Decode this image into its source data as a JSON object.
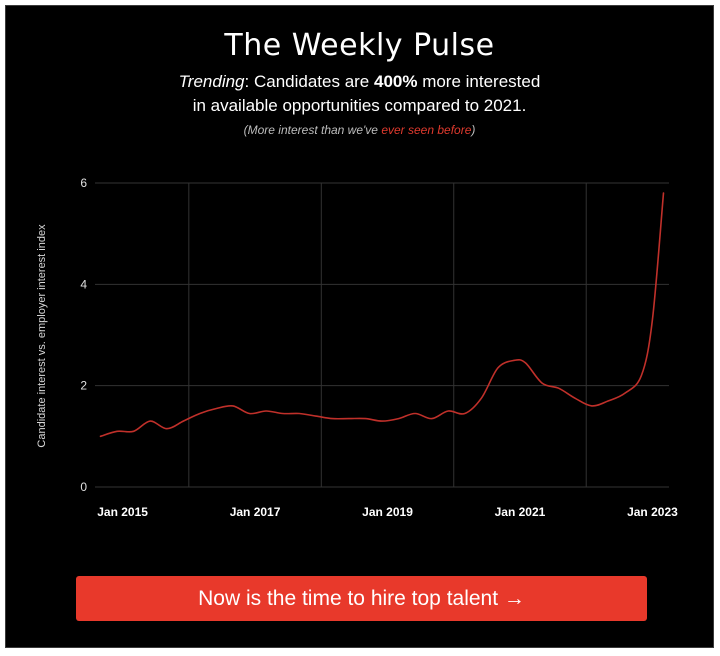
{
  "header": {
    "title": "The Weekly Pulse",
    "trend_prefix": "Trending",
    "trend_mid": ": Candidates are ",
    "trend_highlight": "400%",
    "trend_suffix": " more interested",
    "trend_line2": "in available opportunities compared to 2021.",
    "note_open": "(More interest than we've ",
    "note_highlight": "ever seen before",
    "note_close": ")"
  },
  "cta": {
    "label": "Now is the time to hire top talent →"
  },
  "colors": {
    "line": "#c0302a",
    "highlight": "#e03a2e",
    "cta": "#e8392b",
    "grid": "#333333"
  },
  "chart_data": {
    "type": "line",
    "ylabel": "Candidate interest vs. employer interest index",
    "xlabel": "",
    "ylim": [
      0,
      6
    ],
    "yticks": [
      0,
      2,
      4,
      6
    ],
    "xlim": [
      "2014-08",
      "2023-04"
    ],
    "xtick_labels": [
      "Jan 2015",
      "Jan 2017",
      "Jan 2019",
      "Jan 2021",
      "Jan 2023"
    ],
    "grid": true,
    "series": [
      {
        "x": [
          "2014-09",
          "2014-12",
          "2015-03",
          "2015-06",
          "2015-09",
          "2015-12",
          "2016-03",
          "2016-06",
          "2016-09",
          "2016-12",
          "2017-03",
          "2017-06",
          "2017-09",
          "2017-12",
          "2018-03",
          "2018-06",
          "2018-09",
          "2018-12",
          "2019-03",
          "2019-06",
          "2019-09",
          "2019-12",
          "2020-03",
          "2020-06",
          "2020-09",
          "2020-12",
          "2021-02",
          "2021-05",
          "2021-08",
          "2021-11",
          "2022-02",
          "2022-05",
          "2022-08",
          "2022-11",
          "2023-01",
          "2023-03"
        ],
        "y": [
          1.0,
          1.1,
          1.1,
          1.3,
          1.15,
          1.3,
          1.45,
          1.55,
          1.6,
          1.45,
          1.5,
          1.45,
          1.45,
          1.4,
          1.35,
          1.35,
          1.35,
          1.3,
          1.35,
          1.45,
          1.35,
          1.5,
          1.45,
          1.75,
          2.35,
          2.5,
          2.45,
          2.05,
          1.95,
          1.75,
          1.6,
          1.7,
          1.85,
          2.2,
          3.3,
          5.8
        ]
      }
    ]
  }
}
